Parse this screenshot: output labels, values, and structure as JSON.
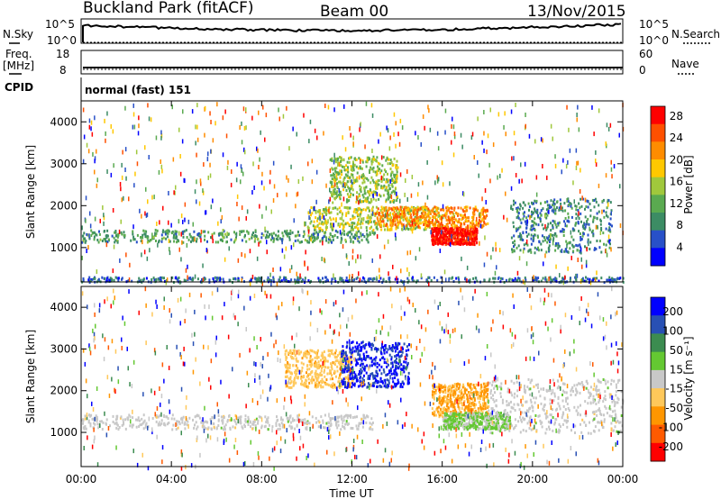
{
  "header": {
    "station": "Buckland Park (fitACF)",
    "beam": "Beam 00",
    "date": "13/Nov/2015"
  },
  "noise_panel": {
    "left_label": "N.Sky",
    "right_label": "N.Search",
    "left_ticks": [
      "10^5",
      "10^0"
    ],
    "right_ticks": [
      "10^5",
      "10^0"
    ]
  },
  "freq_panel": {
    "left_label_1": "Freq.",
    "left_label_2": "[MHz]",
    "right_label": "Nave",
    "left_ticks": [
      "18",
      "8"
    ],
    "right_ticks": [
      "60",
      "0"
    ]
  },
  "cpid": {
    "label": "CPID",
    "value": "normal (fast) 151"
  },
  "x_axis": {
    "label": "Time UT",
    "ticks": [
      "00:00",
      "04:00",
      "08:00",
      "12:00",
      "16:00",
      "20:00",
      "00:00"
    ]
  },
  "colors": {
    "power": [
      "#0000ff",
      "#2850c8",
      "#3c8c64",
      "#5aaa50",
      "#a0c83c",
      "#ffc800",
      "#ff8c00",
      "#ff5000",
      "#ff0000"
    ],
    "velocity": [
      "#ff0000",
      "#ff5a00",
      "#ff9600",
      "#ffc85a",
      "#c8c8c8",
      "#64c832",
      "#3c8c50",
      "#2850b4",
      "#0000ff"
    ]
  },
  "chart_data": [
    {
      "type": "heatmap",
      "name": "power",
      "ylabel": "Slant Range [km]",
      "xlabel": "",
      "xlim": [
        0,
        24
      ],
      "ylim": [
        180,
        4500
      ],
      "yticks": [
        "1000",
        "2000",
        "3000",
        "4000"
      ],
      "colorbar": {
        "label": "Power [dB]",
        "ticks": [
          "4",
          "8",
          "12",
          "16",
          "20",
          "24",
          "28"
        ],
        "range": [
          0,
          30
        ]
      },
      "regions": [
        {
          "t0": 0.0,
          "t1": 13.0,
          "r0": 1150,
          "r1": 1450,
          "value": 10
        },
        {
          "t0": 10.0,
          "t1": 16.0,
          "r0": 1450,
          "r1": 2000,
          "value": 16
        },
        {
          "t0": 13.0,
          "t1": 18.0,
          "r0": 1500,
          "r1": 2000,
          "value": 22
        },
        {
          "t0": 15.5,
          "t1": 17.5,
          "r0": 1100,
          "r1": 1500,
          "value": 28
        },
        {
          "t0": 11.0,
          "t1": 14.0,
          "r0": 2100,
          "r1": 3200,
          "value": 14
        },
        {
          "t0": 19.0,
          "t1": 23.5,
          "r0": 900,
          "r1": 2200,
          "value": 8
        },
        {
          "t0": 0.0,
          "t1": 24.0,
          "r0": 200,
          "r1": 320,
          "value": 6
        }
      ]
    },
    {
      "type": "heatmap",
      "name": "velocity",
      "ylabel": "Slant Range [km]",
      "xlabel": "Time UT",
      "xlim": [
        0,
        24
      ],
      "ylim": [
        180,
        4500
      ],
      "yticks": [
        "1000",
        "2000",
        "3000",
        "4000"
      ],
      "colorbar": {
        "label": "Velocity [m s⁻¹]",
        "ticks": [
          "200",
          "100",
          "50",
          "15",
          "-15",
          "-50",
          "-100",
          "-200"
        ],
        "range": [
          -250,
          250
        ]
      },
      "regions": [
        {
          "t0": 0.0,
          "t1": 13.0,
          "r0": 1100,
          "r1": 1450,
          "value": 0
        },
        {
          "t0": 9.0,
          "t1": 12.0,
          "r0": 2100,
          "r1": 3000,
          "value": -60
        },
        {
          "t0": 11.5,
          "t1": 14.5,
          "r0": 2100,
          "r1": 3200,
          "value": 200
        },
        {
          "t0": 15.5,
          "t1": 18.0,
          "r0": 1400,
          "r1": 2200,
          "value": -90
        },
        {
          "t0": 16.0,
          "t1": 19.0,
          "r0": 1100,
          "r1": 1500,
          "value": 40
        },
        {
          "t0": 18.0,
          "t1": 24.0,
          "r0": 1000,
          "r1": 2300,
          "value": 0
        }
      ]
    }
  ]
}
